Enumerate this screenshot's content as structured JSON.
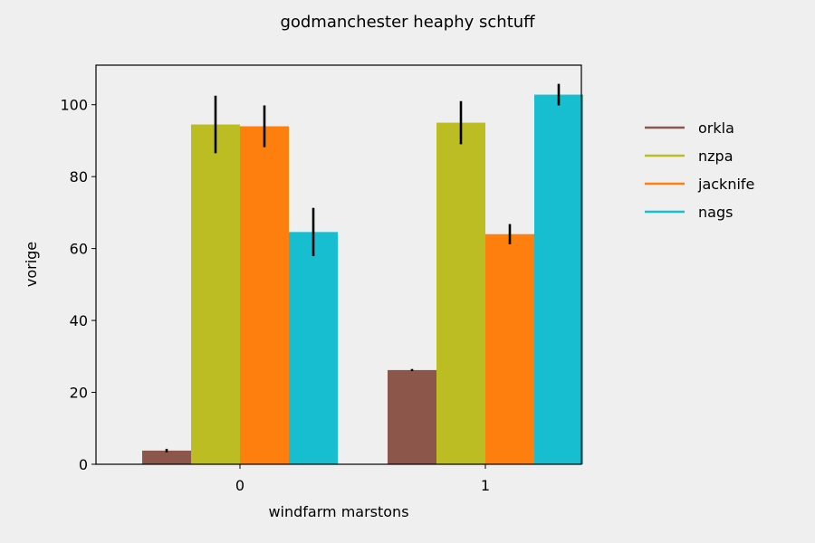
{
  "chart_data": {
    "type": "bar",
    "title": "godmanchester heaphy schtuff",
    "xlabel": "windfarm marstons",
    "ylabel": "vorige",
    "categories": [
      "0",
      "1"
    ],
    "ylim": [
      0,
      111
    ],
    "yticks": [
      0,
      20,
      40,
      60,
      80,
      100
    ],
    "grid": false,
    "legend_position": "right",
    "series": [
      {
        "name": "orkla",
        "color": "#8c564b",
        "values": [
          3.8,
          26.2
        ],
        "errors": [
          0.5,
          0.3
        ]
      },
      {
        "name": "nzpa",
        "color": "#bcbd22",
        "values": [
          94.5,
          95.0
        ],
        "errors": [
          8.0,
          6.0
        ]
      },
      {
        "name": "jacknife",
        "color": "#ff7f0e",
        "values": [
          94.0,
          64.0
        ],
        "errors": [
          5.8,
          2.8
        ]
      },
      {
        "name": "nags",
        "color": "#17becf",
        "values": [
          64.6,
          102.8
        ],
        "errors": [
          6.7,
          3.0
        ]
      }
    ]
  }
}
